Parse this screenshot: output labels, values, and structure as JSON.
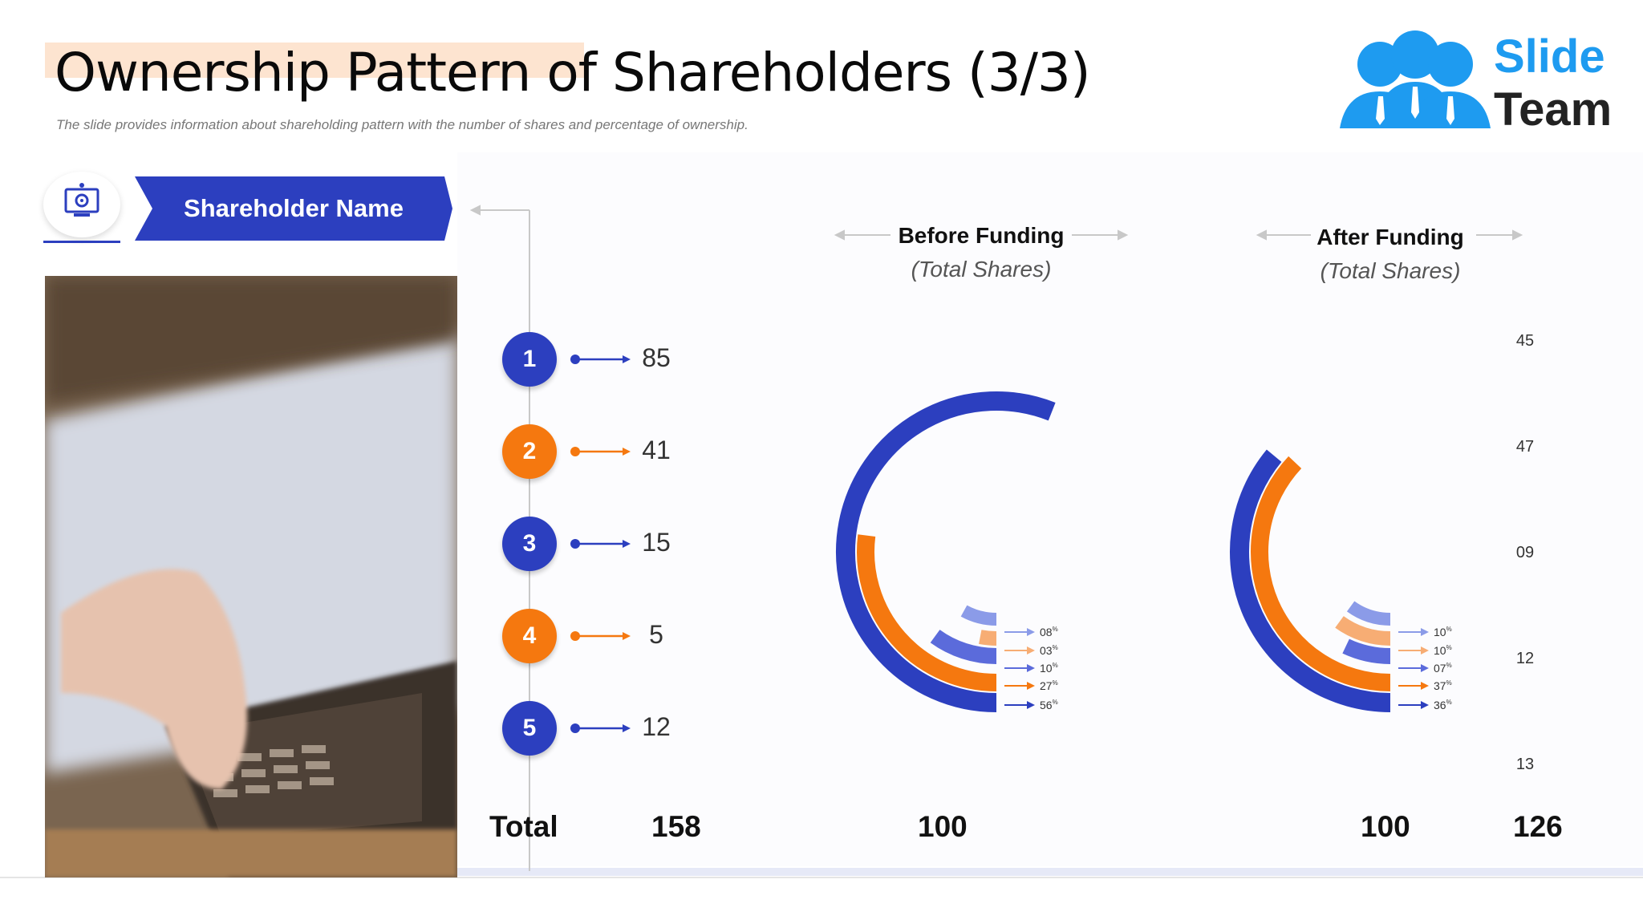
{
  "title": "Ownership Pattern of Shareholders (3/3)",
  "subtitle": "The slide provides information about shareholding pattern with the number of shares and percentage of ownership.",
  "logo": {
    "line1": "Slide",
    "line2": "Team",
    "color": "#1e9bf0",
    "dark": "#222222"
  },
  "banner": {
    "label": "Shareholder Name",
    "color": "#2c3fbf"
  },
  "columns": {
    "before": {
      "title": "Before Funding",
      "subtitle": "(Total Shares)"
    },
    "after": {
      "title": "After Funding",
      "subtitle": "(Total Shares)"
    }
  },
  "shareholders": [
    {
      "number": "1",
      "shares": "85",
      "color": "#2c3fbf"
    },
    {
      "number": "2",
      "shares": "41",
      "color": "#f5780f"
    },
    {
      "number": "3",
      "shares": "15",
      "color": "#2c3fbf"
    },
    {
      "number": "4",
      "shares": "5",
      "color": "#f5780f"
    },
    {
      "number": "5",
      "shares": "12",
      "color": "#2c3fbf"
    }
  ],
  "after_values": [
    "45",
    "47",
    "09",
    "12",
    "13"
  ],
  "totals": {
    "label": "Total",
    "shares": "158",
    "before": "100",
    "after": "100",
    "after_shares": "126"
  },
  "chart_data": [
    {
      "type": "pie",
      "title": "Before Funding",
      "subtitle": "(Total Shares)",
      "labels": [
        "08",
        "03",
        "10",
        "27",
        "56"
      ],
      "values": [
        8,
        3,
        10,
        27,
        56
      ],
      "unit": "%",
      "colors": [
        "#8b9be8",
        "#f7ad74",
        "#5b6bdb",
        "#f5780f",
        "#2c3fbf"
      ],
      "total": 100
    },
    {
      "type": "pie",
      "title": "After Funding",
      "subtitle": "(Total Shares)",
      "labels": [
        "10",
        "10",
        "07",
        "37",
        "36"
      ],
      "values": [
        10,
        10,
        7,
        37,
        36
      ],
      "unit": "%",
      "colors": [
        "#8b9be8",
        "#f7ad74",
        "#5b6bdb",
        "#f5780f",
        "#2c3fbf"
      ],
      "total": 100
    }
  ]
}
